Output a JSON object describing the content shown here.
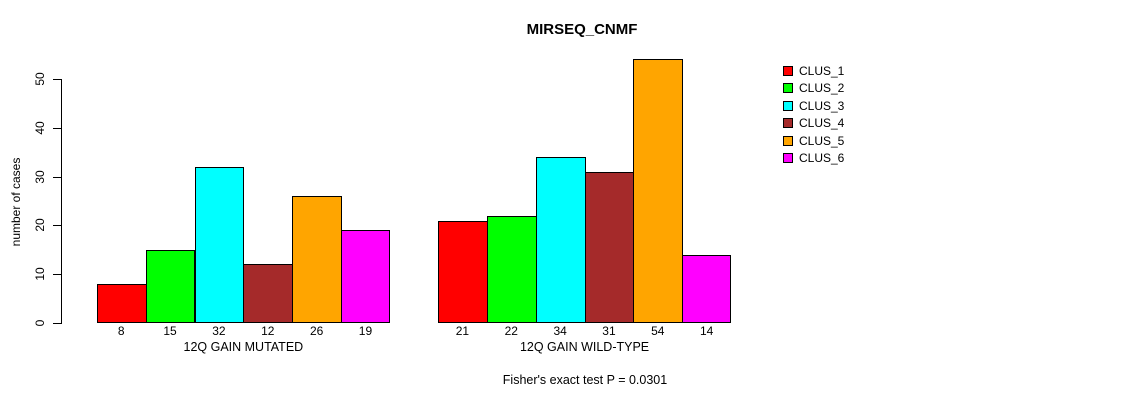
{
  "chart_data": {
    "type": "bar",
    "title": "MIRSEQ_CNMF",
    "ylabel": "number of cases",
    "xlabel": "",
    "ylim": [
      0,
      50
    ],
    "yticks": [
      0,
      10,
      20,
      30,
      40,
      50
    ],
    "grid": false,
    "legend_position": "right",
    "categories": [
      "12Q GAIN MUTATED",
      "12Q GAIN WILD-TYPE"
    ],
    "series": [
      {
        "name": "CLUS_1",
        "color": "#FF0000",
        "values": [
          8,
          21
        ]
      },
      {
        "name": "CLUS_2",
        "color": "#00FF00",
        "values": [
          15,
          22
        ]
      },
      {
        "name": "CLUS_3",
        "color": "#00FFFF",
        "values": [
          32,
          34
        ]
      },
      {
        "name": "CLUS_4",
        "color": "#A52A2A",
        "values": [
          12,
          31
        ]
      },
      {
        "name": "CLUS_5",
        "color": "#FFA500",
        "values": [
          26,
          54
        ]
      },
      {
        "name": "CLUS_6",
        "color": "#FF00FF",
        "values": [
          19,
          14
        ]
      }
    ],
    "footnote": "Fisher's exact test P = 0.0301"
  }
}
